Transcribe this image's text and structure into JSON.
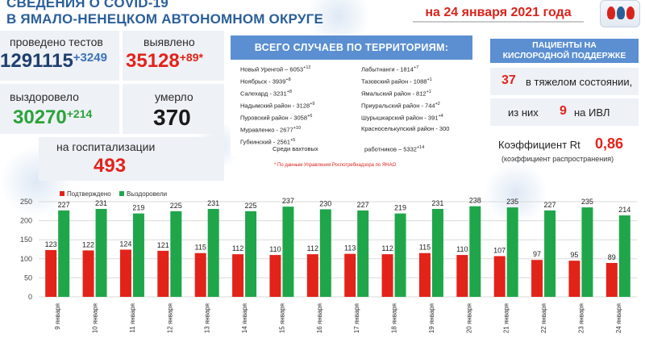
{
  "header": {
    "title_line1": "СВЕДЕНИЯ О COVID-19",
    "title_line2": "В ЯМАЛО-НЕНЕЦКОМ АВТОНОМНОМ ОКРУГЕ",
    "date": "на 24 января 2021 года"
  },
  "stats": {
    "tests_label": "проведено тестов",
    "tests_value": "1291115",
    "tests_delta": "+3249",
    "detected_label": "выявлено",
    "detected_value": "35128",
    "detected_delta": "+89*",
    "recovered_label": "выздоровело",
    "recovered_value": "30270",
    "recovered_delta": "+214",
    "died_label": "умерло",
    "died_value": "370",
    "hospital_label": "на госпитализации",
    "hospital_value": "493"
  },
  "territory": {
    "title": "ВСЕГО СЛУЧАЕВ ПО ТЕРРИТОРИЯМ:",
    "left": [
      {
        "text": "Новый Уренгой – 6053",
        "sup": "+12"
      },
      {
        "text": "Ноябрьск - 3939",
        "sup": "+8"
      },
      {
        "text": "Салехард - 3231",
        "sup": "+8"
      },
      {
        "text": "Надымский район - 3128",
        "sup": "+9"
      },
      {
        "text": "Пуровский район - 3058",
        "sup": "+6"
      },
      {
        "text": "Муравленко - 2677",
        "sup": "+10"
      },
      {
        "text": "Губкинский - 2561",
        "sup": "+5"
      }
    ],
    "right": [
      {
        "text": "Лабытнанги - 1814",
        "sup": "+7"
      },
      {
        "text": "Тазовский район - 1088",
        "sup": "+1"
      },
      {
        "text": "Ямальский район - 812",
        "sup": "+1"
      },
      {
        "text": "Приуральский район - 744",
        "sup": "+2"
      },
      {
        "text": "Шурышкарский район - 391",
        "sup": "+4"
      },
      {
        "text": "Красноселькупский район - 300",
        "sup": ""
      }
    ],
    "watch_left": "Среди вахтовых",
    "watch_right": "работников – 5332",
    "watch_sup": "+14",
    "source": "* По данным Управления Роспотребнадзора по ЯНАО"
  },
  "oxygen": {
    "title_line1": "ПАЦИЕНТЫ НА",
    "title_line2": "КИСЛОРОДНОЙ ПОДДЕРЖКЕ",
    "severe_value": "37",
    "severe_label": "в тяжелом состоянии,",
    "ivl_prefix": "из них",
    "ivl_value": "9",
    "ivl_label": "на ИВЛ",
    "rt_label": "Коэффициент Rt",
    "rt_value": "0,86",
    "rt_sub": "(коэффициент распространения)"
  },
  "chart_data": {
    "type": "bar",
    "categories": [
      "9 января",
      "10 января",
      "11 января",
      "12 января",
      "13 января",
      "14 января",
      "15 января",
      "16 января",
      "17 января",
      "18 января",
      "19 января",
      "20 января",
      "21 января",
      "22 января",
      "23 января",
      "24 января"
    ],
    "series": [
      {
        "name": "Подтверждено",
        "color": "#e2231a",
        "values": [
          123,
          122,
          124,
          121,
          115,
          112,
          110,
          112,
          113,
          112,
          115,
          110,
          107,
          97,
          95,
          89
        ]
      },
      {
        "name": "Выздоровели",
        "color": "#1fa64a",
        "values": [
          227,
          231,
          219,
          225,
          231,
          225,
          237,
          230,
          227,
          219,
          231,
          238,
          235,
          227,
          235,
          214
        ]
      }
    ],
    "ylim": [
      0,
      250
    ],
    "yticks": [
      0,
      50,
      100,
      150,
      200,
      250
    ],
    "grid": true,
    "legend": "top-left"
  }
}
